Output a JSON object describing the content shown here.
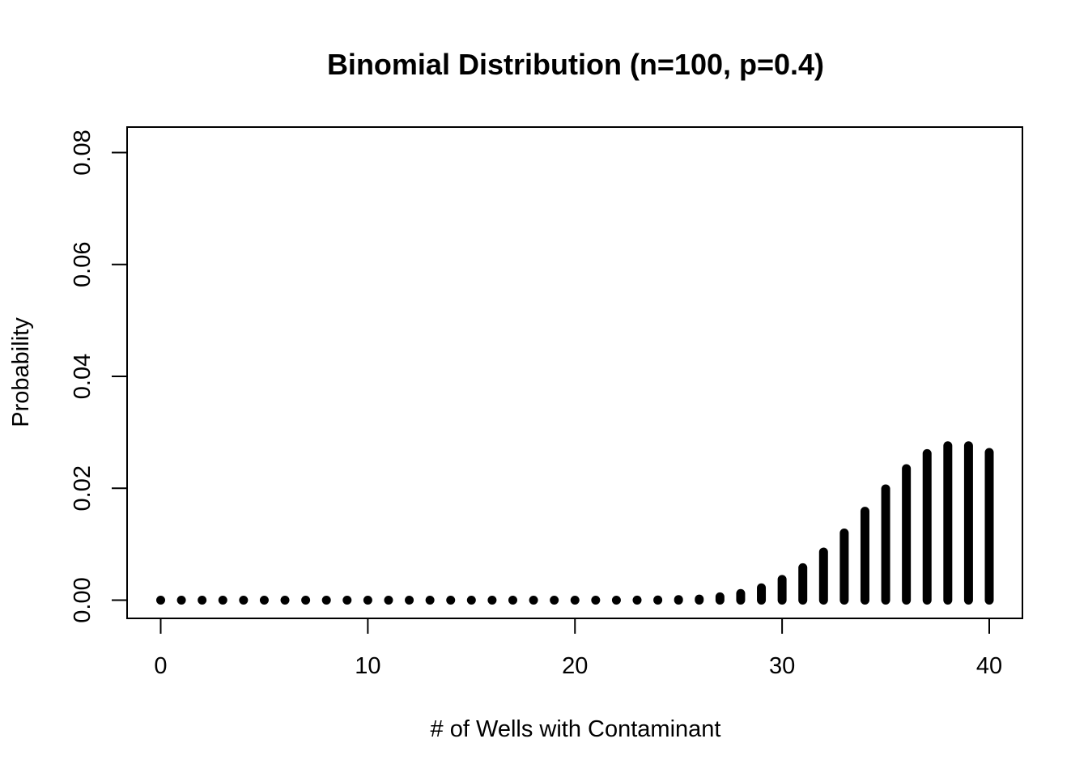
{
  "chart_data": {
    "type": "bar",
    "title": "Binomial Distribution (n=100, p=0.4)",
    "xlabel": "# of Wells with Contaminant",
    "ylabel": "Probability",
    "x": [
      0,
      1,
      2,
      3,
      4,
      5,
      6,
      7,
      8,
      9,
      10,
      11,
      12,
      13,
      14,
      15,
      16,
      17,
      18,
      19,
      20,
      21,
      22,
      23,
      24,
      25,
      26,
      27,
      28,
      29,
      30,
      31,
      32,
      33,
      34,
      35,
      36,
      37,
      38,
      39,
      40
    ],
    "values": [
      0,
      0,
      0,
      0,
      0,
      0,
      0,
      0,
      0,
      0,
      0,
      0,
      0,
      0,
      0,
      0,
      0,
      0,
      0,
      0,
      0,
      0,
      0,
      1e-05,
      4e-05,
      0.0001,
      0.0002,
      0.0006,
      0.0012,
      0.0022,
      0.0037,
      0.0058,
      0.0086,
      0.012,
      0.0159,
      0.0199,
      0.0235,
      0.0262,
      0.0276,
      0.0276,
      0.0264
    ],
    "xlim": [
      0,
      40
    ],
    "ylim": [
      0,
      0.08
    ],
    "xticks": [
      "0",
      "10",
      "20",
      "30",
      "40"
    ],
    "yticks": [
      "0.00",
      "0.02",
      "0.04",
      "0.06",
      "0.08"
    ],
    "grid": false,
    "legend": "none",
    "color": "#000000"
  }
}
